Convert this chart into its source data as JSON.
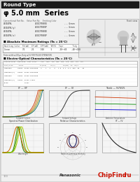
{
  "title_bar": "Round Type",
  "subtitle": "φ 5.0 mm  Series",
  "title_bar_color": "#1a1a1a",
  "title_bar_text_color": "#ffffff",
  "background_color": "#e8e8e8",
  "page_bg": "#d0d0d0",
  "footer_text": "Panasonic",
  "page_num": "100"
}
